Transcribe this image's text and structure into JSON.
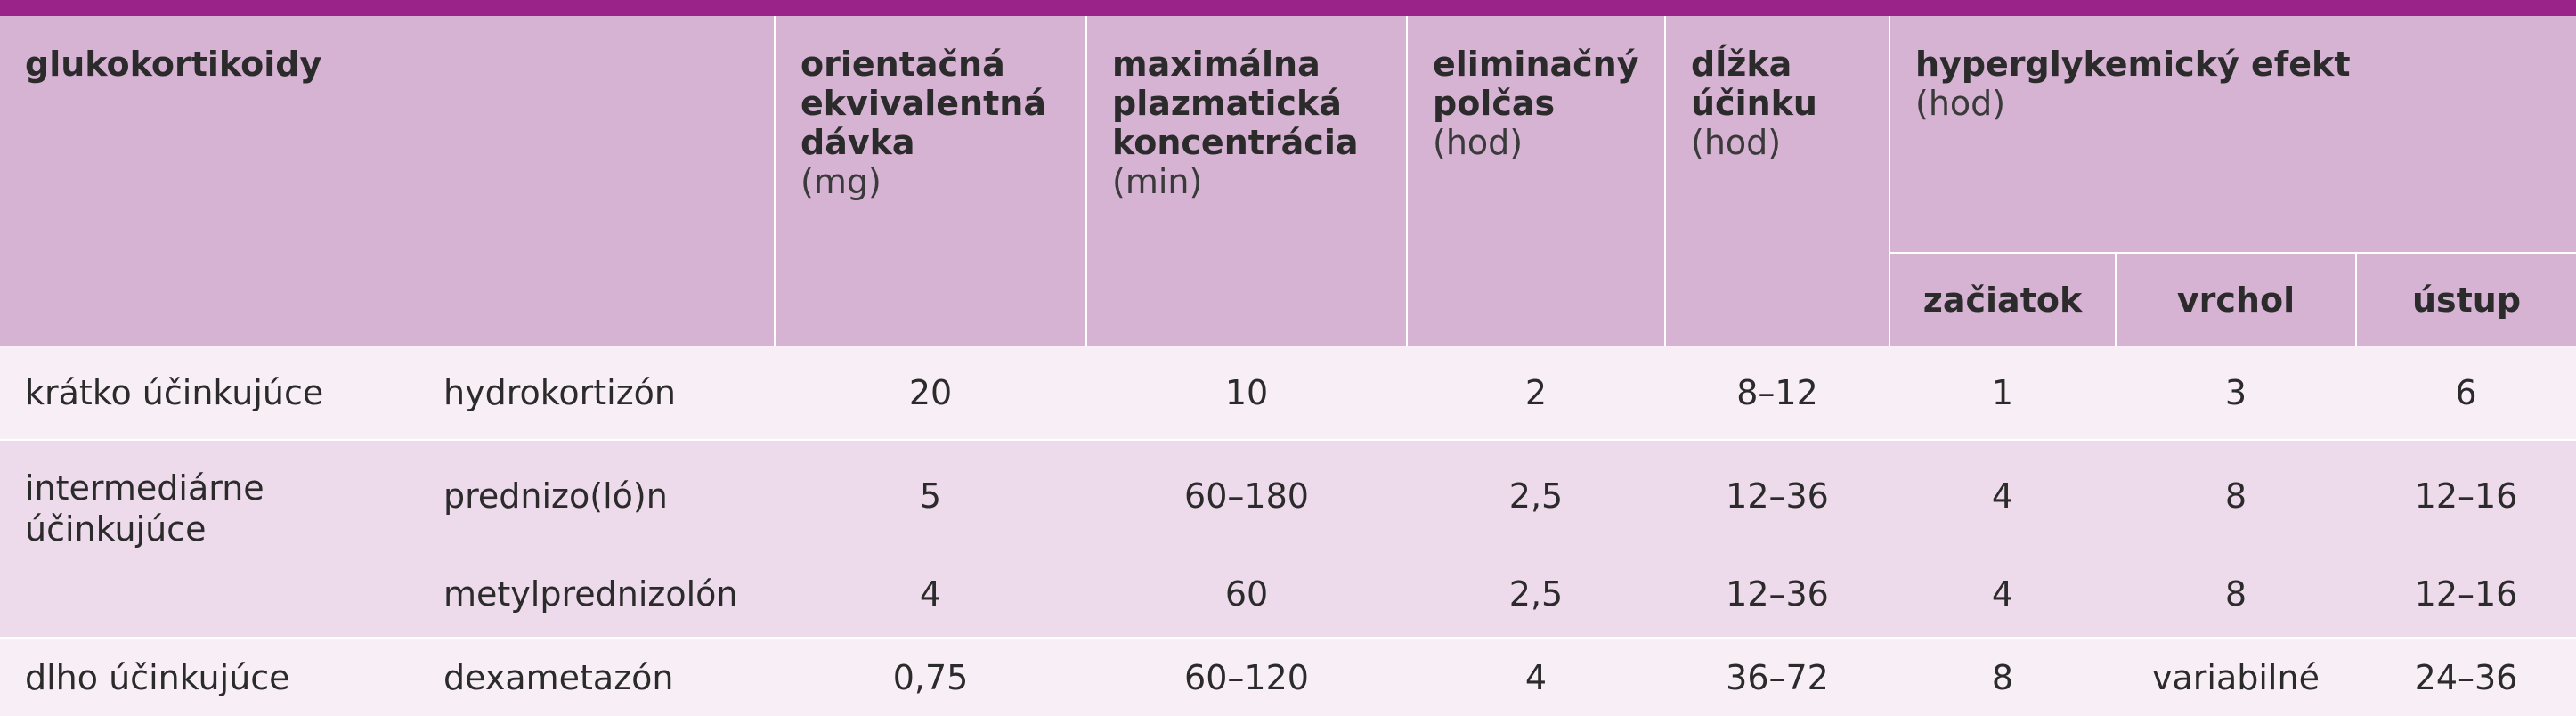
{
  "header": {
    "col1": "glukokortikoidy",
    "col3": {
      "title_lines": [
        "orientačná",
        "ekvivalentná",
        "dávka"
      ],
      "unit": "(mg)"
    },
    "col4": {
      "title_lines": [
        "maximálna",
        "plazmatická",
        "koncentrácia"
      ],
      "unit": "(min)"
    },
    "col5": {
      "title_lines": [
        "eliminačný",
        "polčas"
      ],
      "unit": "(hod)"
    },
    "col6": {
      "title_lines": [
        "dĺžka",
        "účinku"
      ],
      "unit": "(hod)"
    },
    "col7": {
      "title": "hyperglykemický efekt",
      "unit": "(hod)"
    },
    "sub": {
      "start": "začiatok",
      "peak": "vrchol",
      "end": "ústup"
    }
  },
  "rows": [
    {
      "group": "krátko účinkujúce",
      "drug": "hydrokortizón",
      "dose": "20",
      "cmax": "10",
      "halflife": "2",
      "duration": "8–12",
      "start": "1",
      "peak": "3",
      "end": "6"
    },
    {
      "group_lines": [
        "intermediárne",
        "účinkujúce"
      ],
      "drug": "prednizo(ló)n",
      "dose": "5",
      "cmax": "60–180",
      "halflife": "2,5",
      "duration": "12–36",
      "start": "4",
      "peak": "8",
      "end": "12–16"
    },
    {
      "drug": "metylprednizolón",
      "dose": "4",
      "cmax": "60",
      "halflife": "2,5",
      "duration": "12–36",
      "start": "4",
      "peak": "8",
      "end": "12–16"
    },
    {
      "group": "dlho účinkujúce",
      "drug": "dexametazón",
      "dose": "0,75",
      "cmax": "60–120",
      "halflife": "4",
      "duration": "36–72",
      "start": "8",
      "peak": "variabilné",
      "end": "24–36"
    }
  ]
}
